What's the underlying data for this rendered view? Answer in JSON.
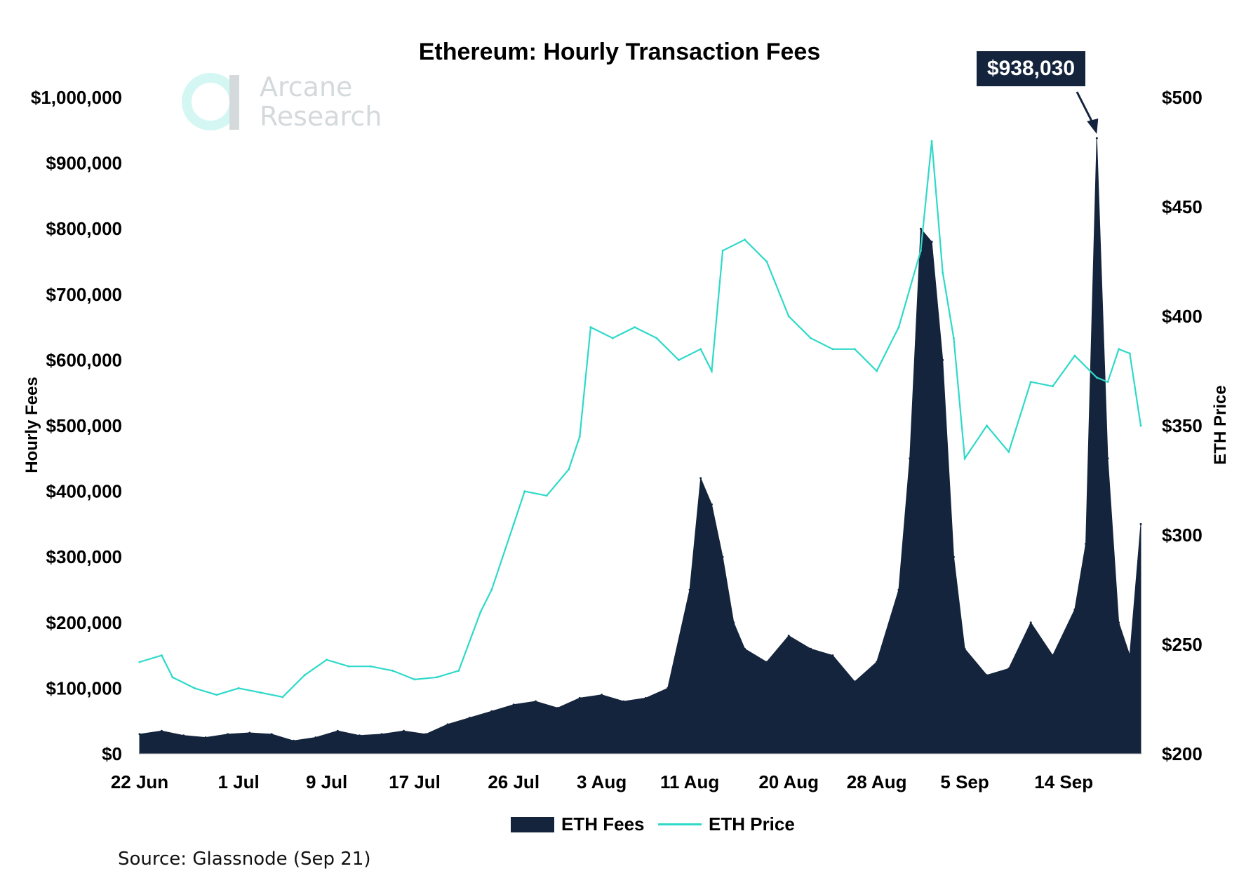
{
  "chart_data": {
    "type": "bar",
    "title": "Ethereum: Hourly Transaction Fees",
    "source": "Source: Glassnode (Sep 21)",
    "watermark": {
      "line1": "Arcane",
      "line2": "Research"
    },
    "annotation": {
      "label": "$938,030",
      "value": 938030,
      "date": "2020-09-17"
    },
    "colors": {
      "fees": "#14243c",
      "price": "#2ed9c9",
      "annotation_bg": "#14243c",
      "logo": "#d4f7f3"
    },
    "x_axis": {
      "type": "date",
      "range": [
        "2020-06-22",
        "2020-09-21"
      ],
      "ticks": [
        {
          "date": "2020-06-22",
          "label": "22 Jun"
        },
        {
          "date": "2020-07-01",
          "label": "1 Jul"
        },
        {
          "date": "2020-07-09",
          "label": "9 Jul"
        },
        {
          "date": "2020-07-17",
          "label": "17 Jul"
        },
        {
          "date": "2020-07-26",
          "label": "26 Jul"
        },
        {
          "date": "2020-08-03",
          "label": "3 Aug"
        },
        {
          "date": "2020-08-11",
          "label": "11 Aug"
        },
        {
          "date": "2020-08-20",
          "label": "20 Aug"
        },
        {
          "date": "2020-08-28",
          "label": "28 Aug"
        },
        {
          "date": "2020-09-05",
          "label": "5 Sep"
        },
        {
          "date": "2020-09-14",
          "label": "14 Sep"
        }
      ]
    },
    "y_left": {
      "label": "Hourly Fees",
      "range": [
        0,
        1000000
      ],
      "ticks": [
        {
          "value": 0,
          "label": "$0"
        },
        {
          "value": 100000,
          "label": "$100,000"
        },
        {
          "value": 200000,
          "label": "$200,000"
        },
        {
          "value": 300000,
          "label": "$300,000"
        },
        {
          "value": 400000,
          "label": "$400,000"
        },
        {
          "value": 500000,
          "label": "$500,000"
        },
        {
          "value": 600000,
          "label": "$600,000"
        },
        {
          "value": 700000,
          "label": "$700,000"
        },
        {
          "value": 800000,
          "label": "$800,000"
        },
        {
          "value": 900000,
          "label": "$900,000"
        },
        {
          "value": 1000000,
          "label": "$1,000,000"
        }
      ]
    },
    "y_right": {
      "label": "ETH Price",
      "range": [
        200,
        500
      ],
      "ticks": [
        {
          "value": 200,
          "label": "$200"
        },
        {
          "value": 250,
          "label": "$250"
        },
        {
          "value": 300,
          "label": "$300"
        },
        {
          "value": 350,
          "label": "$350"
        },
        {
          "value": 400,
          "label": "$400"
        },
        {
          "value": 450,
          "label": "$450"
        },
        {
          "value": 500,
          "label": "$500"
        }
      ]
    },
    "grid": false,
    "legend_position": "bottom-center",
    "series": [
      {
        "name": "ETH Fees",
        "type": "area",
        "axis": "left",
        "x": [
          "2020-06-22",
          "2020-06-24",
          "2020-06-26",
          "2020-06-28",
          "2020-06-30",
          "2020-07-02",
          "2020-07-04",
          "2020-07-06",
          "2020-07-08",
          "2020-07-10",
          "2020-07-12",
          "2020-07-14",
          "2020-07-16",
          "2020-07-18",
          "2020-07-20",
          "2020-07-22",
          "2020-07-24",
          "2020-07-26",
          "2020-07-28",
          "2020-07-30",
          "2020-08-01",
          "2020-08-03",
          "2020-08-05",
          "2020-08-07",
          "2020-08-09",
          "2020-08-11",
          "2020-08-12",
          "2020-08-13",
          "2020-08-14",
          "2020-08-15",
          "2020-08-16",
          "2020-08-18",
          "2020-08-20",
          "2020-08-22",
          "2020-08-24",
          "2020-08-26",
          "2020-08-28",
          "2020-08-30",
          "2020-08-31",
          "2020-09-01",
          "2020-09-02",
          "2020-09-03",
          "2020-09-04",
          "2020-09-05",
          "2020-09-07",
          "2020-09-09",
          "2020-09-11",
          "2020-09-13",
          "2020-09-15",
          "2020-09-16",
          "2020-09-17",
          "2020-09-18",
          "2020-09-19",
          "2020-09-20",
          "2020-09-21"
        ],
        "values": [
          30000,
          35000,
          28000,
          25000,
          30000,
          32000,
          30000,
          20000,
          25000,
          35000,
          28000,
          30000,
          35000,
          30000,
          45000,
          55000,
          65000,
          75000,
          80000,
          70000,
          85000,
          90000,
          80000,
          85000,
          100000,
          250000,
          420000,
          380000,
          300000,
          200000,
          160000,
          140000,
          180000,
          160000,
          150000,
          110000,
          140000,
          250000,
          450000,
          800000,
          780000,
          600000,
          300000,
          160000,
          120000,
          130000,
          200000,
          150000,
          220000,
          320000,
          938030,
          450000,
          200000,
          150000,
          350000
        ]
      },
      {
        "name": "ETH Price",
        "type": "line",
        "axis": "right",
        "x": [
          "2020-06-22",
          "2020-06-24",
          "2020-06-25",
          "2020-06-27",
          "2020-06-29",
          "2020-07-01",
          "2020-07-03",
          "2020-07-05",
          "2020-07-07",
          "2020-07-09",
          "2020-07-11",
          "2020-07-13",
          "2020-07-15",
          "2020-07-17",
          "2020-07-19",
          "2020-07-21",
          "2020-07-23",
          "2020-07-24",
          "2020-07-26",
          "2020-07-27",
          "2020-07-29",
          "2020-07-31",
          "2020-08-01",
          "2020-08-02",
          "2020-08-04",
          "2020-08-06",
          "2020-08-08",
          "2020-08-10",
          "2020-08-12",
          "2020-08-13",
          "2020-08-14",
          "2020-08-16",
          "2020-08-18",
          "2020-08-20",
          "2020-08-22",
          "2020-08-24",
          "2020-08-26",
          "2020-08-28",
          "2020-08-30",
          "2020-09-01",
          "2020-09-02",
          "2020-09-03",
          "2020-09-04",
          "2020-09-05",
          "2020-09-07",
          "2020-09-09",
          "2020-09-11",
          "2020-09-13",
          "2020-09-15",
          "2020-09-17",
          "2020-09-18",
          "2020-09-19",
          "2020-09-20",
          "2020-09-21"
        ],
        "values": [
          242,
          245,
          235,
          230,
          227,
          230,
          228,
          226,
          236,
          243,
          240,
          240,
          238,
          234,
          235,
          238,
          265,
          275,
          305,
          320,
          318,
          330,
          345,
          395,
          390,
          395,
          390,
          380,
          385,
          375,
          430,
          435,
          425,
          400,
          390,
          385,
          385,
          375,
          395,
          430,
          480,
          420,
          390,
          335,
          350,
          338,
          370,
          368,
          382,
          372,
          370,
          385,
          383,
          350
        ]
      }
    ]
  }
}
